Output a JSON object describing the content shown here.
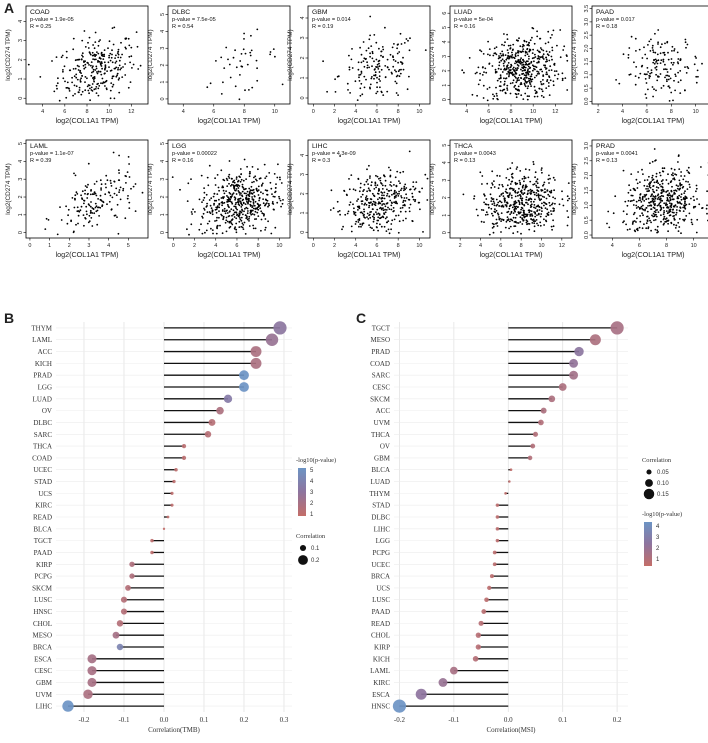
{
  "panel_labels": {
    "a": "A",
    "b": "B",
    "c": "C"
  },
  "chart_data": [
    {
      "type": "scatter",
      "panel": "A",
      "xlabel": "log2(COL1A1 TPM)",
      "ylabel": "log2(CD274 TPM)",
      "subplots": [
        {
          "name": "COAD",
          "pvalue": "p-value = 1.9e-05",
          "r": "R = 0.25",
          "xticks": [
            "4",
            "6",
            "8",
            "10",
            "12"
          ],
          "xlim": [
            2.5,
            13.5
          ],
          "yticks": [
            "0",
            "1",
            "2",
            "3",
            "4"
          ],
          "ylim": [
            -0.3,
            4.8
          ]
        },
        {
          "name": "DLBC",
          "pvalue": "p-value = 7.5e-05",
          "r": "R = 0.54",
          "xticks": [
            "4",
            "6",
            "8",
            "10"
          ],
          "xlim": [
            3,
            11
          ],
          "yticks": [
            "0",
            "1",
            "2",
            "3",
            "4",
            "5"
          ],
          "ylim": [
            -0.3,
            5.5
          ]
        },
        {
          "name": "GBM",
          "pvalue": "p-value = 0.014",
          "r": "R = 0.19",
          "xticks": [
            "0",
            "2",
            "4",
            "6",
            "8",
            "10"
          ],
          "xlim": [
            -0.5,
            11
          ],
          "yticks": [
            "0",
            "1",
            "2",
            "3",
            "4"
          ],
          "ylim": [
            -0.3,
            4.6
          ]
        },
        {
          "name": "LUAD",
          "pvalue": "p-value = 5e-04",
          "r": "R = 0.16",
          "xticks": [
            "4",
            "6",
            "8",
            "10",
            "12"
          ],
          "xlim": [
            2.5,
            13.5
          ],
          "yticks": [
            "0",
            "1",
            "2",
            "3",
            "4",
            "5",
            "6"
          ],
          "ylim": [
            -0.3,
            6.5
          ]
        },
        {
          "name": "PAAD",
          "pvalue": "p-value = 0.017",
          "r": "R = 0.18",
          "xticks": [
            "2",
            "4",
            "6",
            "8",
            "10"
          ],
          "xlim": [
            1.5,
            11.5
          ],
          "yticks": [
            "0.0",
            "0.5",
            "1.0",
            "1.5",
            "2.0",
            "2.5",
            "3.0",
            "3.5"
          ],
          "ylim": [
            -0.1,
            3.6
          ]
        },
        {
          "name": "LAML",
          "pvalue": "p-value = 1.1e-07",
          "r": "R = 0.39",
          "xticks": [
            "0",
            "1",
            "2",
            "3",
            "4",
            "5"
          ],
          "xlim": [
            -0.2,
            6
          ],
          "yticks": [
            "0",
            "1",
            "2",
            "3",
            "4",
            "5"
          ],
          "ylim": [
            -0.3,
            5.2
          ]
        },
        {
          "name": "LGG",
          "pvalue": "p-value = 0.00022",
          "r": "R = 0.16",
          "xticks": [
            "0",
            "2",
            "4",
            "6",
            "8",
            "10"
          ],
          "xlim": [
            -0.5,
            11
          ],
          "yticks": [
            "0",
            "1",
            "2",
            "3",
            "4",
            "5"
          ],
          "ylim": [
            -0.3,
            5.2
          ]
        },
        {
          "name": "LIHC",
          "pvalue": "p-value = 4.3e-09",
          "r": "R = 0.3",
          "xticks": [
            "0",
            "2",
            "4",
            "6",
            "8",
            "10"
          ],
          "xlim": [
            -0.5,
            11
          ],
          "yticks": [
            "0",
            "1",
            "2",
            "3",
            "4"
          ],
          "ylim": [
            -0.3,
            4.8
          ]
        },
        {
          "name": "THCA",
          "pvalue": "p-value = 0.0043",
          "r": "R = 0.13",
          "xticks": [
            "2",
            "4",
            "6",
            "8",
            "10",
            "12"
          ],
          "xlim": [
            1,
            13
          ],
          "yticks": [
            "0",
            "1",
            "2",
            "3",
            "4",
            "5"
          ],
          "ylim": [
            -0.3,
            5.3
          ]
        },
        {
          "name": "PRAD",
          "pvalue": "p-value = 0.0041",
          "r": "R = 0.13",
          "xticks": [
            "4",
            "6",
            "8",
            "10"
          ],
          "xlim": [
            2.5,
            11.5
          ],
          "yticks": [
            "0.0",
            "0.5",
            "1.0",
            "1.5",
            "2.0",
            "2.5",
            "3.0"
          ],
          "ylim": [
            -0.1,
            3.2
          ]
        }
      ]
    },
    {
      "type": "lollipop",
      "panel": "B",
      "xlabel": "Correlation(TMB)",
      "xlim": [
        -0.27,
        0.32
      ],
      "xticks": [
        -0.2,
        -0.1,
        0.0,
        0.1,
        0.2,
        0.3
      ],
      "xtick_labels": [
        "-0.2",
        "-0.1",
        "0.0",
        "0.1",
        "0.2",
        "0.3"
      ],
      "categories": [
        "THYM",
        "LAML",
        "ACC",
        "KICH",
        "PRAD",
        "LGG",
        "LUAD",
        "OV",
        "DLBC",
        "SARC",
        "THCA",
        "COAD",
        "UCEC",
        "STAD",
        "UCS",
        "KIRC",
        "READ",
        "BLCA",
        "TGCT",
        "PAAD",
        "KIRP",
        "PCPG",
        "SKCM",
        "LUSC",
        "HNSC",
        "CHOL",
        "MESO",
        "BRCA",
        "ESCA",
        "CESC",
        "GBM",
        "UVM",
        "LIHC"
      ],
      "values": [
        0.29,
        0.27,
        0.23,
        0.23,
        0.2,
        0.2,
        0.16,
        0.14,
        0.12,
        0.11,
        0.05,
        0.05,
        0.03,
        0.025,
        0.02,
        0.02,
        0.01,
        0.0,
        -0.03,
        -0.03,
        -0.08,
        -0.08,
        -0.09,
        -0.1,
        -0.1,
        -0.11,
        -0.12,
        -0.11,
        -0.18,
        -0.18,
        -0.18,
        -0.19,
        -0.24
      ],
      "neglog10p": [
        2.8,
        2.2,
        1.4,
        1.4,
        5.0,
        5.0,
        3.2,
        1.3,
        0.9,
        0.9,
        0.7,
        0.7,
        0.6,
        0.6,
        0.6,
        0.6,
        0.5,
        0.4,
        0.6,
        0.6,
        1.2,
        1.2,
        1.0,
        1.0,
        1.0,
        1.0,
        1.6,
        3.8,
        1.6,
        1.5,
        1.5,
        1.4,
        5.0
      ],
      "legend_color": {
        "title": "-log10(p-value)",
        "ticks": [
          "5",
          "4",
          "3",
          "2",
          "1"
        ]
      },
      "legend_size": {
        "title": "Correlation",
        "items": [
          "0.1",
          "0.2"
        ]
      }
    },
    {
      "type": "lollipop",
      "panel": "C",
      "xlabel": "Correlation(MSI)",
      "xlim": [
        -0.21,
        0.22
      ],
      "xticks": [
        -0.2,
        -0.1,
        0.0,
        0.1,
        0.2
      ],
      "xtick_labels": [
        "-0.2",
        "-0.1",
        "0.0",
        "0.1",
        "0.2"
      ],
      "categories": [
        "TGCT",
        "MESO",
        "PRAD",
        "COAD",
        "SARC",
        "CESC",
        "SKCM",
        "ACC",
        "UVM",
        "THCA",
        "OV",
        "GBM",
        "BLCA",
        "LUAD",
        "THYM",
        "STAD",
        "DLBC",
        "LIHC",
        "LGG",
        "PCPG",
        "UCEC",
        "BRCA",
        "UCS",
        "LUSC",
        "PAAD",
        "READ",
        "CHOL",
        "KIRP",
        "KICH",
        "LAML",
        "KIRC",
        "ESCA",
        "HNSC"
      ],
      "values": [
        0.2,
        0.16,
        0.13,
        0.12,
        0.12,
        0.1,
        0.08,
        0.065,
        0.06,
        0.05,
        0.045,
        0.04,
        0.005,
        0.002,
        -0.005,
        -0.02,
        -0.02,
        -0.02,
        -0.02,
        -0.025,
        -0.025,
        -0.03,
        -0.035,
        -0.04,
        -0.045,
        -0.05,
        -0.055,
        -0.055,
        -0.06,
        -0.1,
        -0.12,
        -0.16,
        -0.2
      ],
      "neglog10p": [
        1.4,
        1.2,
        2.5,
        2.2,
        1.6,
        1.2,
        1.2,
        1.2,
        1.0,
        1.0,
        1.0,
        1.0,
        0.5,
        0.5,
        0.5,
        0.6,
        0.6,
        0.6,
        0.6,
        0.6,
        0.6,
        0.6,
        0.6,
        0.6,
        0.7,
        0.8,
        0.8,
        0.8,
        0.9,
        1.4,
        2.0,
        2.4,
        4.5
      ],
      "legend_size": {
        "title": "Correlation",
        "items": [
          "0.05",
          "0.10",
          "0.15"
        ]
      },
      "legend_color": {
        "title": "-log10(p-value)",
        "ticks": [
          "4",
          "3",
          "2",
          "1"
        ]
      }
    }
  ]
}
